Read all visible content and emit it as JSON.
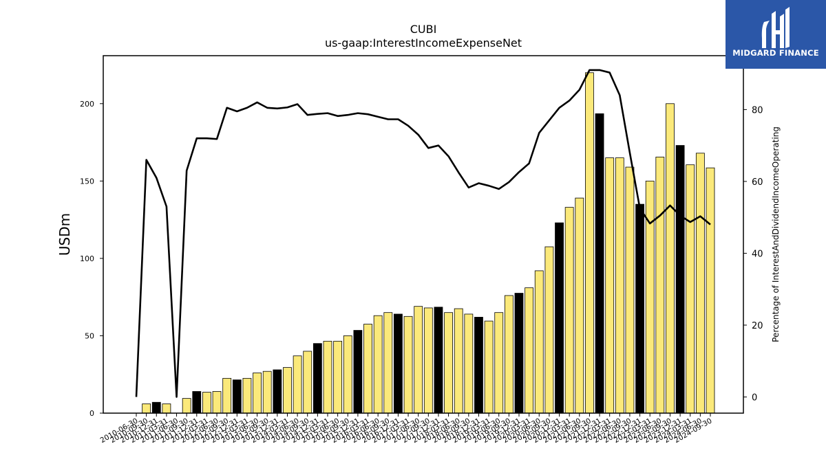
{
  "chart_data": {
    "type": "bar",
    "title": "CUBI",
    "subtitle": "us-gaap:InterestIncomeExpenseNet",
    "ylabel": "USDm",
    "y2label": "Percentage of InterestAndDividendIncomeOperating",
    "ylim": [
      0,
      231
    ],
    "y2lim": [
      -4.5,
      95
    ],
    "yticks": [
      "0",
      "50",
      "100",
      "150",
      "200"
    ],
    "y2ticks": [
      "0",
      "20",
      "40",
      "60",
      "80"
    ],
    "categories": [
      "2010-06-30",
      "2010-09-30",
      "2010-12-31",
      "2011-03-31",
      "2011-06-30",
      "2011-09-30",
      "2011-12-31",
      "2012-03-31",
      "2012-06-30",
      "2012-09-30",
      "2012-12-31",
      "2013-03-31",
      "2013-06-30",
      "2013-09-30",
      "2013-12-31",
      "2014-03-31",
      "2014-06-30",
      "2014-09-30",
      "2014-12-31",
      "2015-03-31",
      "2015-06-30",
      "2015-09-30",
      "2015-12-31",
      "2016-03-31",
      "2016-06-30",
      "2016-09-30",
      "2016-12-31",
      "2017-03-31",
      "2017-06-30",
      "2017-09-30",
      "2017-12-31",
      "2018-03-31",
      "2018-06-30",
      "2018-09-30",
      "2018-12-31",
      "2019-03-31",
      "2019-06-30",
      "2019-09-30",
      "2019-12-31",
      "2020-03-31",
      "2020-06-30",
      "2020-09-30",
      "2020-12-31",
      "2021-03-31",
      "2021-06-30",
      "2021-09-30",
      "2021-12-31",
      "2022-03-31",
      "2022-06-30",
      "2022-09-30",
      "2022-12-31",
      "2023-03-31",
      "2023-06-30",
      "2023-09-30",
      "2023-12-31",
      "2024-03-31",
      "2024-06-30",
      "2024-09-30"
    ],
    "bar_values": [
      0,
      6,
      7,
      6,
      0,
      9.5,
      14,
      13.5,
      14,
      22.5,
      21.5,
      22.5,
      26,
      27,
      28,
      29.5,
      37,
      40,
      45,
      46.5,
      46.5,
      50,
      53.5,
      57.5,
      63,
      65,
      64,
      62.5,
      69,
      68,
      68.5,
      65,
      67.5,
      64,
      62,
      59.5,
      65,
      76,
      77.5,
      81,
      92,
      107.5,
      123,
      133,
      139,
      220,
      193.5,
      165,
      165,
      159,
      135,
      150,
      165.5,
      200,
      173,
      160.5,
      168,
      158.5
    ],
    "bar_highlight": [
      false,
      false,
      true,
      false,
      false,
      false,
      true,
      false,
      false,
      false,
      true,
      false,
      false,
      false,
      true,
      false,
      false,
      false,
      true,
      false,
      false,
      false,
      true,
      false,
      false,
      false,
      true,
      false,
      false,
      false,
      true,
      false,
      false,
      false,
      true,
      false,
      false,
      false,
      true,
      false,
      false,
      false,
      true,
      false,
      false,
      false,
      true,
      false,
      false,
      false,
      true,
      false,
      false,
      false,
      true,
      false,
      false,
      false
    ],
    "line_values": [
      0,
      66,
      61,
      53,
      0,
      63,
      72,
      72,
      71.8,
      80.5,
      79.5,
      80.5,
      82,
      80.5,
      80.3,
      80.6,
      81.5,
      78.5,
      78.8,
      79,
      78.2,
      78.5,
      79,
      78.7,
      78,
      77.3,
      77.3,
      75.5,
      73,
      69.3,
      70,
      67,
      62.5,
      58.3,
      59.5,
      58.8,
      57.9,
      59.8,
      62.6,
      65,
      73.5,
      77,
      80.5,
      82.5,
      85.5,
      91,
      91,
      90.3,
      84,
      68,
      52.5,
      48.3,
      50.5,
      53.3,
      50.5,
      48.7,
      50.3,
      48
    ],
    "bar_colors": {
      "normal": "#fbe97a",
      "highlight": "#000000",
      "edge": "#000000"
    },
    "line_color": "#000000",
    "grid": false
  },
  "logo": {
    "text": "MIDGARD FINANCE",
    "color": "#2b57a8"
  }
}
